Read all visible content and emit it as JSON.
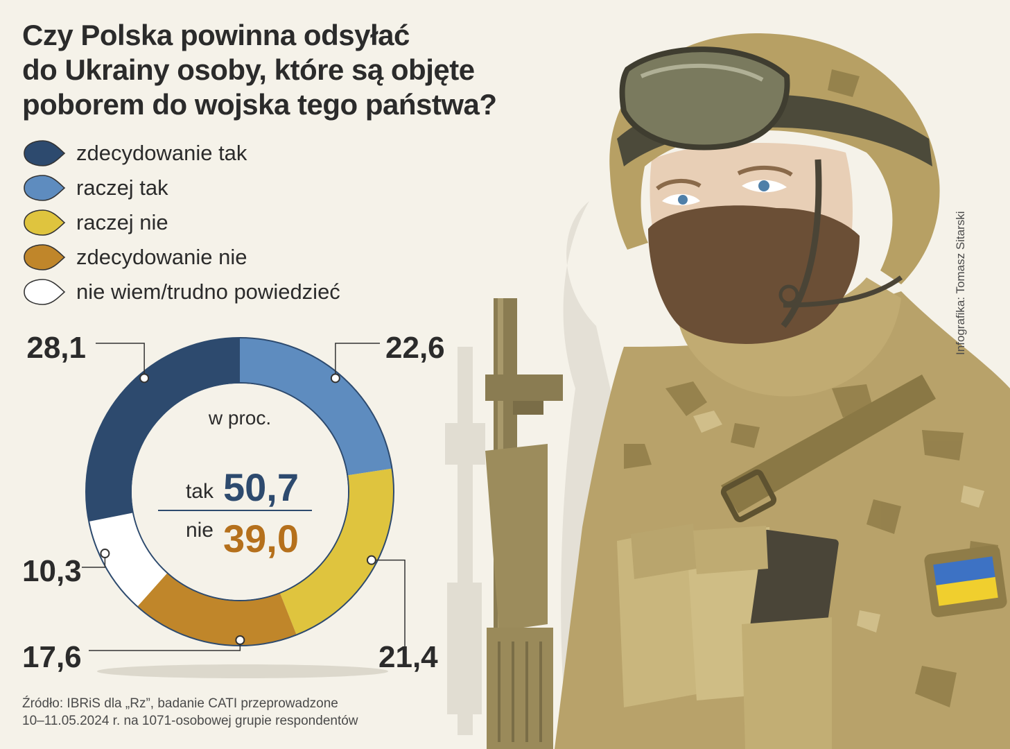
{
  "title_lines": [
    "Czy Polska powinna odsyłać",
    "do Ukrainy osoby, które są objęte",
    "poborem do wojska tego państwa?"
  ],
  "legend": [
    {
      "label": "zdecydowanie tak",
      "color": "#2d4a6e"
    },
    {
      "label": "raczej tak",
      "color": "#5e8cbf"
    },
    {
      "label": "raczej nie",
      "color": "#dfc43e"
    },
    {
      "label": "zdecydowanie nie",
      "color": "#c0862a"
    },
    {
      "label": "nie wiem/trudno powiedzieć",
      "color": "#ffffff"
    }
  ],
  "chart_data": {
    "type": "pie",
    "variant": "donut",
    "unit": "w proc.",
    "categories": [
      "zdecydowanie tak",
      "raczej tak",
      "raczej nie",
      "zdecydowanie nie",
      "nie wiem/trudno powiedzieć"
    ],
    "values": [
      28.1,
      22.6,
      21.4,
      17.6,
      10.3
    ],
    "value_labels": [
      "28,1",
      "22,6",
      "21,4",
      "17,6",
      "10,3"
    ],
    "colors": [
      "#2d4a6e",
      "#5e8cbf",
      "#dfc43e",
      "#c0862a",
      "#ffffff"
    ],
    "start": "top, clockwise from raczej tak"
  },
  "center": {
    "unit": "w proc.",
    "yes_label": "tak",
    "yes_value": "50,7",
    "yes_color": "#2d4a6e",
    "no_label": "nie",
    "no_value": "39,0",
    "no_color": "#b5701c"
  },
  "credit": "Infografika: Tomasz Sitarski",
  "source_lines": [
    "Źródło: IBRiS dla „Rz”, badanie CATI przeprowadzone",
    "10–11.05.2024 r. na 1071-osobowej grupie respondentów"
  ]
}
